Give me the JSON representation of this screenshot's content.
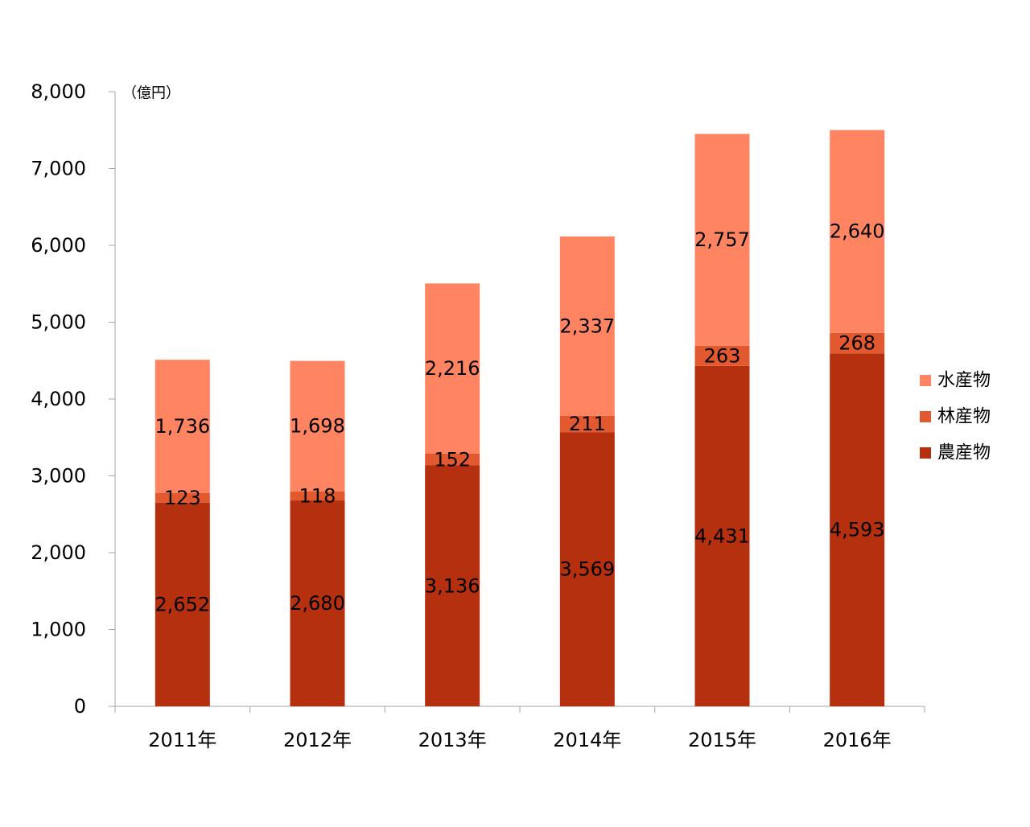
{
  "chart_data": {
    "type": "bar",
    "stacked": true,
    "title": "",
    "xlabel": "",
    "ylabel": "",
    "unit_label": "（億円）",
    "categories": [
      "2011年",
      "2012年",
      "2013年",
      "2014年",
      "2015年",
      "2016年"
    ],
    "series": [
      {
        "name": "農産物",
        "color": "#B5300F",
        "values": [
          2652,
          2680,
          3136,
          3569,
          4431,
          4593
        ],
        "labels": [
          "2,652",
          "2,680",
          "3,136",
          "3,569",
          "4,431",
          "4,593"
        ]
      },
      {
        "name": "林産物",
        "color": "#E2582F",
        "values": [
          123,
          118,
          152,
          211,
          263,
          268
        ],
        "labels": [
          "123",
          "118",
          "152",
          "211",
          "263",
          "268"
        ]
      },
      {
        "name": "水産物",
        "color": "#FF8562",
        "values": [
          1736,
          1698,
          2216,
          2337,
          2757,
          2640
        ],
        "labels": [
          "1,736",
          "1,698",
          "2,216",
          "2,337",
          "2,757",
          "2,640"
        ]
      }
    ],
    "ylim": [
      0,
      8000
    ],
    "yticks": [
      0,
      1000,
      2000,
      3000,
      4000,
      5000,
      6000,
      7000,
      8000
    ],
    "ytick_labels": [
      "0",
      "1,000",
      "2,000",
      "3,000",
      "4,000",
      "5,000",
      "6,000",
      "7,000",
      "8,000"
    ],
    "legend": {
      "position": "right",
      "items": [
        "水産物",
        "林産物",
        "農産物"
      ]
    },
    "grid": false,
    "axis_color": "#A6A6A6"
  }
}
